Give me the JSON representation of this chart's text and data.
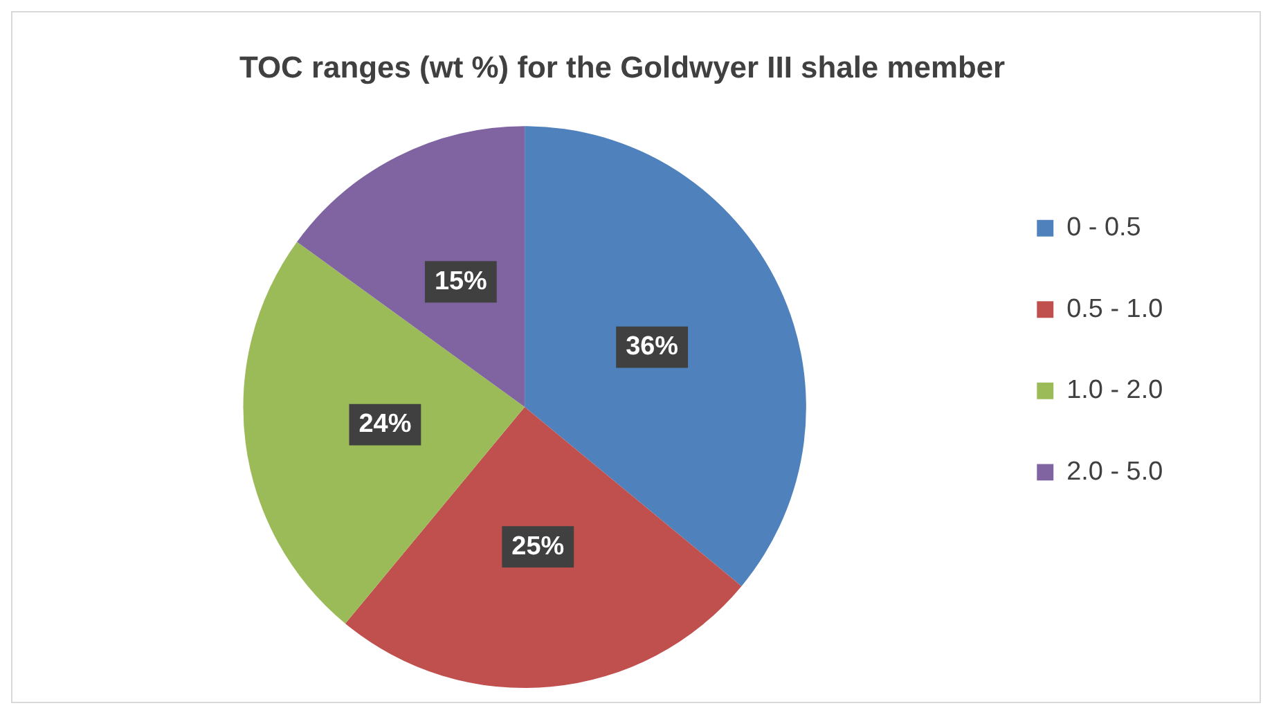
{
  "chart_data": {
    "type": "pie",
    "title": "TOC ranges (wt %) for the Goldwyer III shale member",
    "categories": [
      "0 - 0.5",
      "0.5 - 1.0",
      "1.0 - 2.0",
      "2.0 - 5.0"
    ],
    "values": [
      36,
      25,
      24,
      15
    ],
    "colors": [
      "#4f81bd",
      "#c0504d",
      "#9bbb59",
      "#8064a2"
    ],
    "value_labels": [
      "36%",
      "25%",
      "24%",
      "15%"
    ],
    "legend": "right"
  }
}
